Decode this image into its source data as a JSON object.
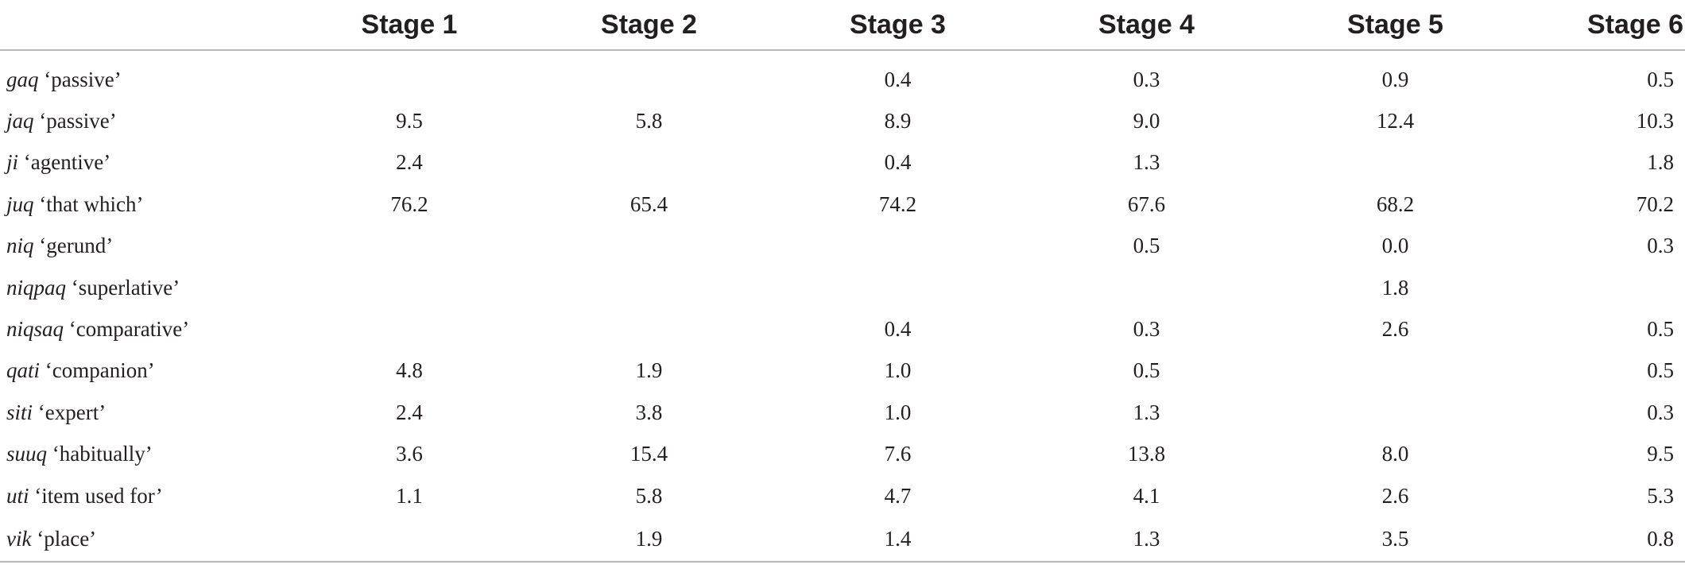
{
  "table": {
    "headers": [
      "",
      "Stage 1",
      "Stage 2",
      "Stage 3",
      "Stage 4",
      "Stage 5",
      "Stage 6"
    ],
    "rows": [
      {
        "morpheme": "gaq",
        "gloss": "‘passive’",
        "values": [
          "",
          "",
          "0.4",
          "0.3",
          "0.9",
          "0.5"
        ]
      },
      {
        "morpheme": "jaq",
        "gloss": "‘passive’",
        "values": [
          "9.5",
          "5.8",
          "8.9",
          "9.0",
          "12.4",
          "10.3"
        ]
      },
      {
        "morpheme": "ji",
        "gloss": "‘agentive’",
        "values": [
          "2.4",
          "",
          "0.4",
          "1.3",
          "",
          "1.8"
        ]
      },
      {
        "morpheme": "juq",
        "gloss": "‘that which’",
        "values": [
          "76.2",
          "65.4",
          "74.2",
          "67.6",
          "68.2",
          "70.2"
        ]
      },
      {
        "morpheme": "niq",
        "gloss": "‘gerund’",
        "values": [
          "",
          "",
          "",
          "0.5",
          "0.0",
          "0.3"
        ]
      },
      {
        "morpheme": "niqpaq",
        "gloss": "‘superlative’",
        "values": [
          "",
          "",
          "",
          "",
          "1.8",
          ""
        ]
      },
      {
        "morpheme": "niqsaq",
        "gloss": "‘comparative’",
        "values": [
          "",
          "",
          "0.4",
          "0.3",
          "2.6",
          "0.5"
        ]
      },
      {
        "morpheme": "qati",
        "gloss": "‘companion’",
        "values": [
          "4.8",
          "1.9",
          "1.0",
          "0.5",
          "",
          "0.5"
        ]
      },
      {
        "morpheme": "siti",
        "gloss": "‘expert’",
        "values": [
          "2.4",
          "3.8",
          "1.0",
          "1.3",
          "",
          "0.3"
        ]
      },
      {
        "morpheme": "suuq",
        "gloss": "‘habitually’",
        "values": [
          "3.6",
          "15.4",
          "7.6",
          "13.8",
          "8.0",
          "9.5"
        ]
      },
      {
        "morpheme": "uti",
        "gloss": "‘item used for’",
        "values": [
          "1.1",
          "5.8",
          "4.7",
          "4.1",
          "2.6",
          "5.3"
        ]
      },
      {
        "morpheme": "vik",
        "gloss": "‘place’",
        "values": [
          "",
          "1.9",
          "1.4",
          "1.3",
          "3.5",
          "0.8"
        ]
      }
    ]
  }
}
